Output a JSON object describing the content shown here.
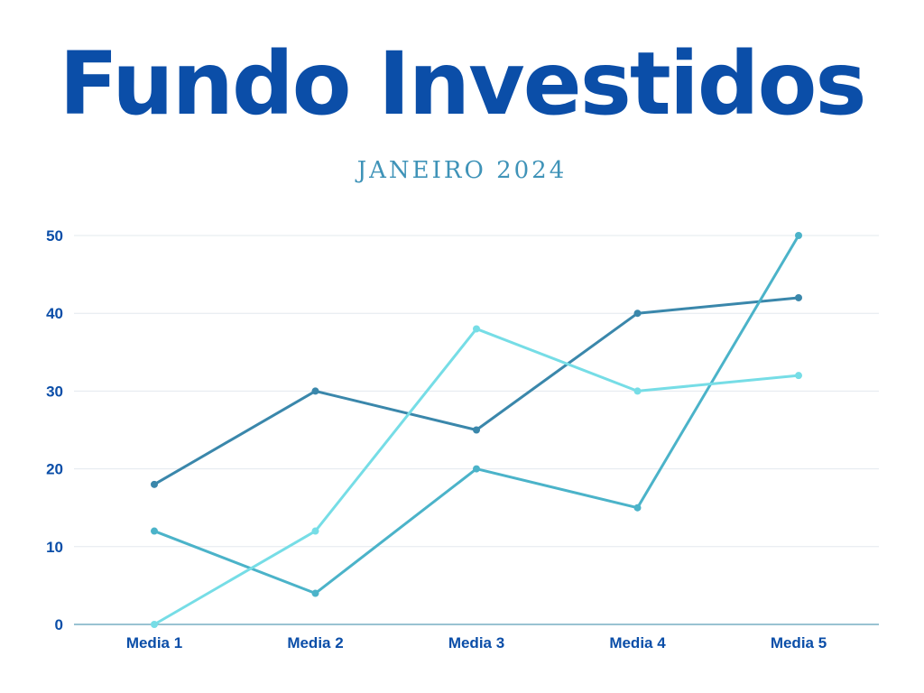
{
  "header": {
    "title": "Fundo Investidos",
    "subtitle": "JANEIRO 2024"
  },
  "chart_data": {
    "type": "line",
    "title": "Fundo Investidos",
    "subtitle": "JANEIRO 2024",
    "categories": [
      "Media 1",
      "Media 2",
      "Media 3",
      "Media 4",
      "Media 5"
    ],
    "ylim": [
      0,
      50
    ],
    "yticks": [
      0,
      10,
      20,
      30,
      40,
      50
    ],
    "grid": true,
    "legend": "none",
    "series": [
      {
        "values": [
          18,
          30,
          25,
          40,
          42
        ],
        "color": "#3a87ab"
      },
      {
        "values": [
          12,
          4,
          20,
          15,
          50
        ],
        "color": "#4bb3c9"
      },
      {
        "values": [
          0,
          12,
          38,
          30,
          32
        ],
        "color": "#76dde6"
      }
    ],
    "colors": {
      "grid": "#e3e8ee",
      "axis": "#5c9fb8",
      "tick_text": "#0b4ea8"
    }
  }
}
